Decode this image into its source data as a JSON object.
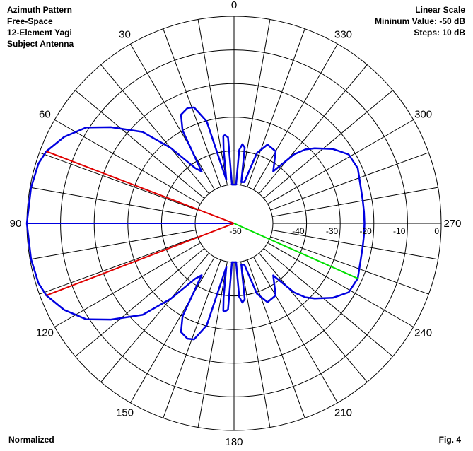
{
  "header_left": {
    "line1": "Azimuth Pattern",
    "line2": "Free-Space",
    "line3": "12-Element Yagi",
    "line4": "Subject Antenna"
  },
  "header_right": {
    "line1": "Linear Scale",
    "line2": "Mininum Value:  -50 dB",
    "line3": "Steps:  10 dB"
  },
  "footer_left": "Normalized",
  "footer_right": "Fig. 4",
  "chart_data": {
    "type": "polar",
    "scale": "linear",
    "r_min_db": -50,
    "r_max_db": 0,
    "step_db": 10,
    "angle_labels": [
      {
        "deg": 0,
        "text": "0"
      },
      {
        "deg": 30,
        "text": "30"
      },
      {
        "deg": 60,
        "text": "60"
      },
      {
        "deg": 90,
        "text": "90"
      },
      {
        "deg": 120,
        "text": "120"
      },
      {
        "deg": 150,
        "text": "150"
      },
      {
        "deg": 180,
        "text": "180"
      },
      {
        "deg": 210,
        "text": "210"
      },
      {
        "deg": 240,
        "text": "240"
      },
      {
        "deg": 270,
        "text": "270"
      },
      {
        "deg": 300,
        "text": "300"
      },
      {
        "deg": 330,
        "text": "330"
      }
    ],
    "radial_labels": [
      {
        "db": -50,
        "text": "-50"
      },
      {
        "db": -40,
        "text": "-40"
      },
      {
        "db": -30,
        "text": "-30"
      },
      {
        "db": -20,
        "text": "-20"
      },
      {
        "db": -10,
        "text": "-10"
      },
      {
        "db": 0,
        "text": "0"
      }
    ],
    "pattern_color": "#0000e0",
    "pattern": [
      {
        "az": 0,
        "db": -50
      },
      {
        "az": 3,
        "db": -50
      },
      {
        "az": 4,
        "db": -35.9
      },
      {
        "az": 6,
        "db": -35.2
      },
      {
        "az": 7,
        "db": -35.4
      },
      {
        "az": 8,
        "db": -39.2
      },
      {
        "az": 10,
        "db": -48.4
      },
      {
        "az": 12,
        "db": -44.5
      },
      {
        "az": 15,
        "db": -30.2
      },
      {
        "az": 19,
        "db": -25.1
      },
      {
        "az": 22,
        "db": -24.6
      },
      {
        "az": 26,
        "db": -25.6
      },
      {
        "az": 29,
        "db": -30.0
      },
      {
        "az": 32,
        "db": -43.4
      },
      {
        "az": 35,
        "db": -41.5
      },
      {
        "az": 40,
        "db": -32.3
      },
      {
        "az": 45,
        "db": -23.1
      },
      {
        "az": 52,
        "db": -15.1
      },
      {
        "az": 57,
        "db": -9.2
      },
      {
        "az": 63,
        "db": -4.9
      },
      {
        "az": 69,
        "db": -1.8
      },
      {
        "az": 73,
        "db": -0.8
      },
      {
        "az": 80,
        "db": -0.3
      },
      {
        "az": 90,
        "db": 0
      },
      {
        "az": 100,
        "db": -0.3
      },
      {
        "az": 107,
        "db": -0.8
      },
      {
        "az": 111,
        "db": -1.8
      },
      {
        "az": 117,
        "db": -4.9
      },
      {
        "az": 123,
        "db": -9.2
      },
      {
        "az": 128,
        "db": -15.1
      },
      {
        "az": 135,
        "db": -23.1
      },
      {
        "az": 140,
        "db": -32.3
      },
      {
        "az": 145,
        "db": -41.5
      },
      {
        "az": 148,
        "db": -43.4
      },
      {
        "az": 151,
        "db": -30.0
      },
      {
        "az": 154,
        "db": -25.6
      },
      {
        "az": 158,
        "db": -24.6
      },
      {
        "az": 161,
        "db": -25.1
      },
      {
        "az": 165,
        "db": -30.2
      },
      {
        "az": 168,
        "db": -44.5
      },
      {
        "az": 170,
        "db": -48.4
      },
      {
        "az": 172,
        "db": -39.2
      },
      {
        "az": 173,
        "db": -35.4
      },
      {
        "az": 174,
        "db": -35.2
      },
      {
        "az": 176,
        "db": -35.9
      },
      {
        "az": 177,
        "db": -50
      },
      {
        "az": 180,
        "db": -50
      },
      {
        "az": 183,
        "db": -50
      },
      {
        "az": 184,
        "db": -39.7
      },
      {
        "az": 186,
        "db": -37.9
      },
      {
        "az": 188,
        "db": -38.8
      },
      {
        "az": 190,
        "db": -49.1
      },
      {
        "az": 194,
        "db": -48.9
      },
      {
        "az": 198,
        "db": -39.6
      },
      {
        "az": 203,
        "db": -36.1
      },
      {
        "az": 210,
        "db": -36.8
      },
      {
        "az": 217,
        "db": -42.2
      },
      {
        "az": 221,
        "db": -34.4
      },
      {
        "az": 224,
        "db": -31.0
      },
      {
        "az": 227,
        "db": -28.8
      },
      {
        "az": 233,
        "db": -24.8
      },
      {
        "az": 239,
        "db": -21.8
      },
      {
        "az": 246,
        "db": -21.3
      },
      {
        "az": 253,
        "db": -22.3
      },
      {
        "az": 260,
        "db": -22.7
      },
      {
        "az": 265,
        "db": -22.8
      },
      {
        "az": 270,
        "db": -22.8
      },
      {
        "az": 275,
        "db": -22.8
      },
      {
        "az": 280,
        "db": -22.7
      },
      {
        "az": 287,
        "db": -22.3
      },
      {
        "az": 294,
        "db": -21.3
      },
      {
        "az": 301,
        "db": -21.8
      },
      {
        "az": 307,
        "db": -24.8
      },
      {
        "az": 313,
        "db": -28.8
      },
      {
        "az": 316,
        "db": -31.0
      },
      {
        "az": 319,
        "db": -34.4
      },
      {
        "az": 323,
        "db": -42.2
      },
      {
        "az": 330,
        "db": -36.8
      },
      {
        "az": 337,
        "db": -36.1
      },
      {
        "az": 342,
        "db": -39.6
      },
      {
        "az": 346,
        "db": -48.9
      },
      {
        "az": 350,
        "db": -49.1
      },
      {
        "az": 352,
        "db": -38.8
      },
      {
        "az": 354,
        "db": -37.9
      },
      {
        "az": 356,
        "db": -39.7
      },
      {
        "az": 357,
        "db": -50
      },
      {
        "az": 360,
        "db": -50
      }
    ],
    "markers": [
      {
        "name": "max-gain-line",
        "color": "#0000e0",
        "az": 90,
        "db": 0
      },
      {
        "name": "half-power-line-upper",
        "color": "#e00000",
        "az": 69,
        "db": -1.8
      },
      {
        "name": "half-power-line-lower",
        "color": "#e00000",
        "az": 111,
        "db": -1.8
      },
      {
        "name": "rear-lobe-line",
        "color": "#00e000",
        "az": 246,
        "db": -21.3
      }
    ],
    "grid": true
  }
}
